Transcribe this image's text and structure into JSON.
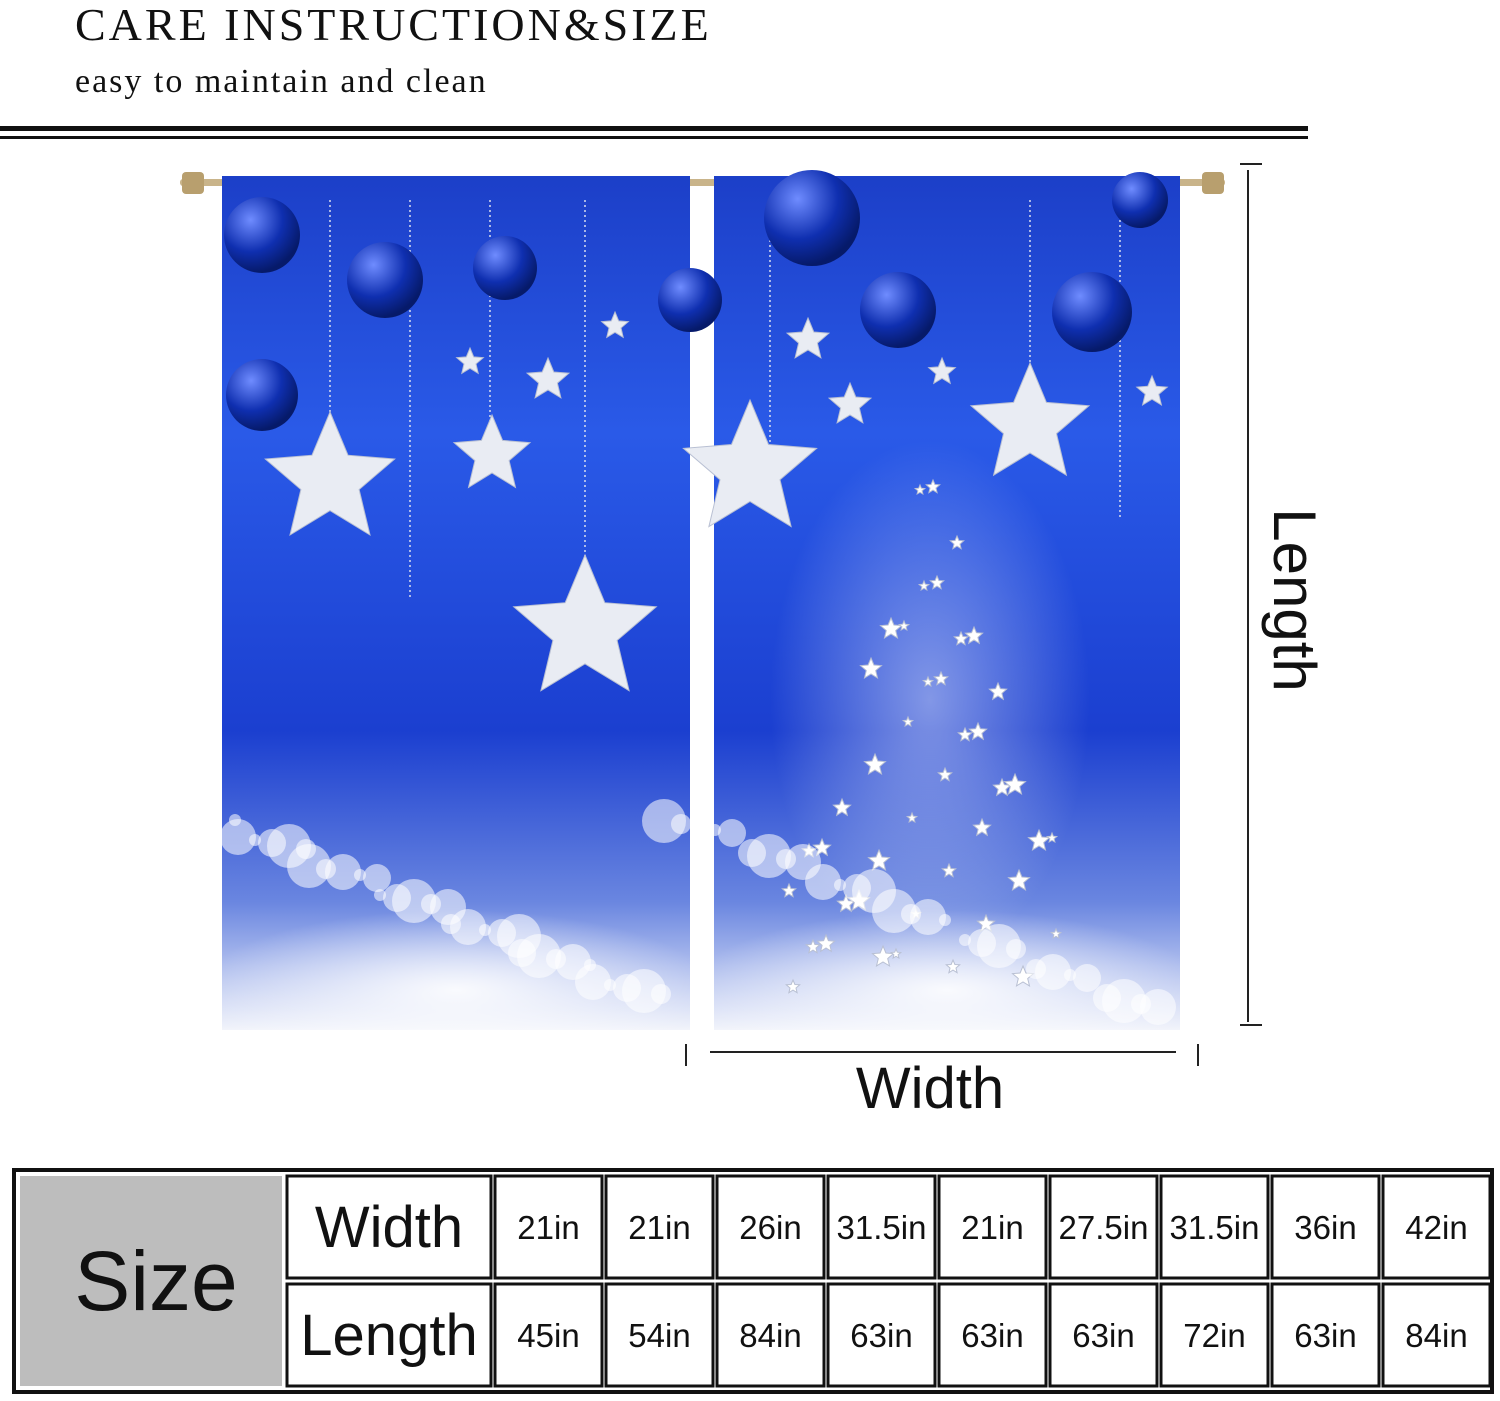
{
  "header": {
    "title": "CARE INSTRUCTION&SIZE",
    "subtitle": "easy to maintain and clean"
  },
  "diagram": {
    "length_label": "Length",
    "width_label": "Width"
  },
  "table": {
    "header": "Size",
    "rows": [
      [
        "Width",
        "21in",
        "21in",
        "26in",
        "31.5in",
        "21in",
        "27.5in",
        "31.5in",
        "36in",
        "42in"
      ],
      [
        "Length",
        "45in",
        "54in",
        "84in",
        "63in",
        "63in",
        "63in",
        "72in",
        "63in",
        "84in"
      ]
    ]
  }
}
